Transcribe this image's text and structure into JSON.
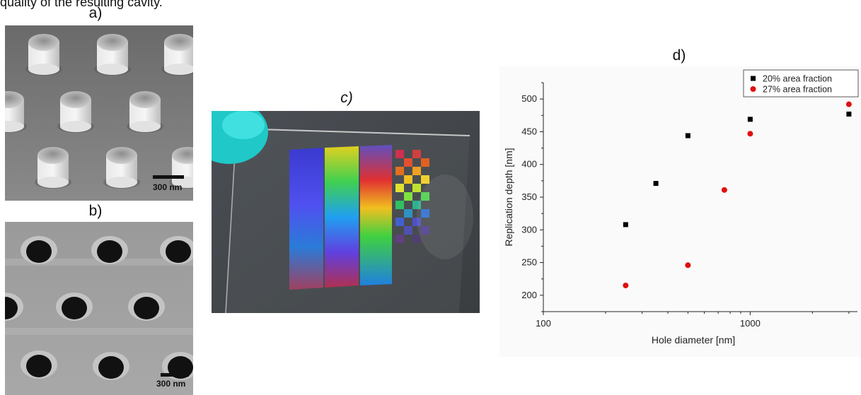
{
  "top_text": "quality of the resulting cavity.",
  "panel_labels": {
    "a": "a)",
    "b": "b)",
    "c": "c)",
    "d": "d)"
  },
  "sem_a": {
    "scale_bar": "300 nm"
  },
  "sem_b": {
    "scale_bar": "300 nm"
  },
  "chart_data": {
    "type": "scatter",
    "title": "d)",
    "xlabel": "Hole diameter [nm]",
    "ylabel": "Replication depth [nm]",
    "x_scale": "log",
    "xlim": [
      100,
      3300
    ],
    "ylim": [
      175,
      525
    ],
    "x_ticks": [
      100,
      1000
    ],
    "x_tick_labels": [
      "100",
      "1000"
    ],
    "y_ticks": [
      200,
      250,
      300,
      350,
      400,
      450,
      500
    ],
    "y_tick_labels": [
      "200",
      "250",
      "300",
      "350",
      "400",
      "450",
      "500"
    ],
    "legend_position": "top-right",
    "grid": false,
    "series": [
      {
        "name": "20% area fraction",
        "marker": "square",
        "color": "#000000",
        "x": [
          250,
          350,
          500,
          1000,
          3000
        ],
        "y": [
          308,
          371,
          444,
          469,
          477
        ]
      },
      {
        "name": "27% area fraction",
        "marker": "circle",
        "color": "#e01010",
        "x": [
          250,
          500,
          750,
          1000,
          3000
        ],
        "y": [
          215,
          246,
          361,
          447,
          492
        ]
      }
    ]
  }
}
